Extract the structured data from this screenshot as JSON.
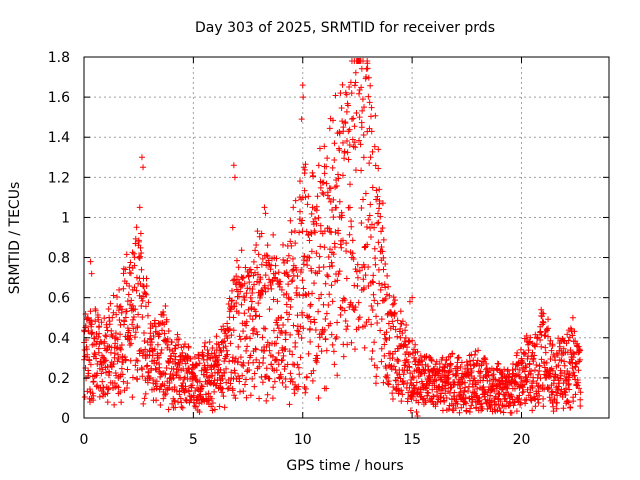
{
  "chart_data": {
    "type": "scatter",
    "title": "Day 303 of 2025, SRMTID for receiver prds",
    "xlabel": "GPS time / hours",
    "ylabel": "SRMTID / TECUs",
    "xlim": [
      0,
      24
    ],
    "ylim": [
      0,
      1.8
    ],
    "xticks": [
      0,
      5,
      10,
      15,
      20
    ],
    "xtick_labels": [
      "0",
      "5",
      "10",
      "15",
      "20"
    ],
    "yticks": [
      0,
      0.2,
      0.4,
      0.6,
      0.8,
      1,
      1.2,
      1.4,
      1.6,
      1.8
    ],
    "ytick_labels": [
      "0",
      "0.2",
      "0.4",
      "0.6",
      "0.8",
      "1",
      "1.2",
      "1.4",
      "1.6",
      "1.8"
    ],
    "grid": true,
    "marker": "+",
    "marker_color": "#ff0000",
    "profile": [
      {
        "t": 0.0,
        "y": 0.35
      },
      {
        "t": 0.5,
        "y": 0.3
      },
      {
        "t": 1.0,
        "y": 0.28
      },
      {
        "t": 1.5,
        "y": 0.38
      },
      {
        "t": 2.0,
        "y": 0.45
      },
      {
        "t": 2.5,
        "y": 0.55
      },
      {
        "t": 3.0,
        "y": 0.32
      },
      {
        "t": 3.5,
        "y": 0.35
      },
      {
        "t": 4.0,
        "y": 0.25
      },
      {
        "t": 4.5,
        "y": 0.22
      },
      {
        "t": 5.0,
        "y": 0.18
      },
      {
        "t": 5.5,
        "y": 0.2
      },
      {
        "t": 6.0,
        "y": 0.22
      },
      {
        "t": 6.5,
        "y": 0.3
      },
      {
        "t": 7.0,
        "y": 0.45
      },
      {
        "t": 7.5,
        "y": 0.45
      },
      {
        "t": 8.0,
        "y": 0.55
      },
      {
        "t": 8.5,
        "y": 0.5
      },
      {
        "t": 9.0,
        "y": 0.45
      },
      {
        "t": 9.5,
        "y": 0.55
      },
      {
        "t": 10.0,
        "y": 0.75
      },
      {
        "t": 10.5,
        "y": 0.7
      },
      {
        "t": 11.0,
        "y": 0.75
      },
      {
        "t": 11.5,
        "y": 0.85
      },
      {
        "t": 12.0,
        "y": 0.95
      },
      {
        "t": 12.5,
        "y": 1.1
      },
      {
        "t": 13.0,
        "y": 1.05
      },
      {
        "t": 13.5,
        "y": 0.7
      },
      {
        "t": 14.0,
        "y": 0.35
      },
      {
        "t": 14.5,
        "y": 0.3
      },
      {
        "t": 15.0,
        "y": 0.22
      },
      {
        "t": 15.5,
        "y": 0.2
      },
      {
        "t": 16.0,
        "y": 0.15
      },
      {
        "t": 16.5,
        "y": 0.17
      },
      {
        "t": 17.0,
        "y": 0.18
      },
      {
        "t": 17.5,
        "y": 0.16
      },
      {
        "t": 18.0,
        "y": 0.18
      },
      {
        "t": 18.5,
        "y": 0.15
      },
      {
        "t": 19.0,
        "y": 0.15
      },
      {
        "t": 19.5,
        "y": 0.14
      },
      {
        "t": 20.0,
        "y": 0.2
      },
      {
        "t": 20.5,
        "y": 0.25
      },
      {
        "t": 21.0,
        "y": 0.3
      },
      {
        "t": 21.5,
        "y": 0.22
      },
      {
        "t": 22.0,
        "y": 0.25
      },
      {
        "t": 22.5,
        "y": 0.25
      },
      {
        "t": 22.7,
        "y": 0.22
      }
    ],
    "spikes": [
      {
        "t": 0.3,
        "y": 0.78
      },
      {
        "t": 0.35,
        "y": 0.72
      },
      {
        "t": 2.55,
        "y": 1.05
      },
      {
        "t": 2.65,
        "y": 1.3
      },
      {
        "t": 2.7,
        "y": 1.25
      },
      {
        "t": 2.6,
        "y": 0.92
      },
      {
        "t": 6.8,
        "y": 0.95
      },
      {
        "t": 6.85,
        "y": 1.26
      },
      {
        "t": 6.9,
        "y": 1.2
      },
      {
        "t": 8.25,
        "y": 1.05
      },
      {
        "t": 8.3,
        "y": 1.02
      },
      {
        "t": 10.0,
        "y": 1.66
      },
      {
        "t": 10.02,
        "y": 1.6
      },
      {
        "t": 9.95,
        "y": 1.49
      },
      {
        "t": 10.05,
        "y": 1.25
      },
      {
        "t": 11.8,
        "y": 1.48
      },
      {
        "t": 11.85,
        "y": 1.43
      },
      {
        "t": 12.6,
        "y": 1.5
      },
      {
        "t": 12.75,
        "y": 1.59
      },
      {
        "t": 12.8,
        "y": 1.55
      },
      {
        "t": 12.7,
        "y": 1.45
      },
      {
        "t": 11.45,
        "y": 1.37
      },
      {
        "t": 12.4,
        "y": 1.35
      },
      {
        "t": 13.1,
        "y": 1.3
      },
      {
        "t": 15.2,
        "y": 0.03
      },
      {
        "t": 15.25,
        "y": 0.01
      },
      {
        "t": 20.9,
        "y": 0.54
      },
      {
        "t": 21.0,
        "y": 0.52
      },
      {
        "t": 19.0,
        "y": 0.05
      },
      {
        "t": 22.35,
        "y": 0.5
      },
      {
        "t": 15.0,
        "y": 0.6
      },
      {
        "t": 14.9,
        "y": 0.58
      },
      {
        "t": 11.0,
        "y": 1.22
      }
    ]
  }
}
